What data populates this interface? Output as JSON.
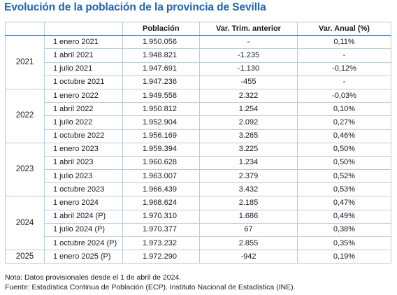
{
  "title": "Evolución de la población de la provincia de Sevilla",
  "headers": {
    "poblacion": "Población",
    "var_trim": "Var. Trim. anterior",
    "var_anual": "Var. Anual (%)"
  },
  "rows": [
    {
      "year": "2021",
      "date": "1 enero 2021",
      "pop": "1.950.056",
      "tri": "-",
      "anu": "0,11%"
    },
    {
      "year": "2021",
      "date": "1 abril 2021",
      "pop": "1.948.821",
      "tri": "-1.235",
      "anu": "-"
    },
    {
      "year": "2021",
      "date": "1 julio 2021",
      "pop": "1.947.691",
      "tri": "-1.130",
      "anu": "-0,12%"
    },
    {
      "year": "2021",
      "date": "1 octubre 2021",
      "pop": "1.947.236",
      "tri": "-455",
      "anu": "-"
    },
    {
      "year": "2022",
      "date": "1 enero 2022",
      "pop": "1.949.558",
      "tri": "2.322",
      "anu": "-0,03%"
    },
    {
      "year": "2022",
      "date": "1 abril 2022",
      "pop": "1.950.812",
      "tri": "1.254",
      "anu": "0,10%"
    },
    {
      "year": "2022",
      "date": "1 julio 2022",
      "pop": "1.952.904",
      "tri": "2.092",
      "anu": "0,27%"
    },
    {
      "year": "2022",
      "date": "1 octubre 2022",
      "pop": "1.956.169",
      "tri": "3.265",
      "anu": "0,46%"
    },
    {
      "year": "2023",
      "date": "1 enero 2023",
      "pop": "1.959.394",
      "tri": "3.225",
      "anu": "0,50%"
    },
    {
      "year": "2023",
      "date": "1 abril 2023",
      "pop": "1.960.628",
      "tri": "1.234",
      "anu": "0,50%"
    },
    {
      "year": "2023",
      "date": "1 julio 2023",
      "pop": "1.963.007",
      "tri": "2.379",
      "anu": "0,52%"
    },
    {
      "year": "2023",
      "date": "1 octubre 2023",
      "pop": "1.966.439",
      "tri": "3.432",
      "anu": "0,53%"
    },
    {
      "year": "2024",
      "date": "1 enero 2024",
      "pop": "1.968.624",
      "tri": "2.185",
      "anu": "0,47%"
    },
    {
      "year": "2024",
      "date": "1 abril 2024 (P)",
      "pop": "1.970.310",
      "tri": "1.686",
      "anu": "0,49%"
    },
    {
      "year": "2024",
      "date": "1 julio 2024 (P)",
      "pop": "1.970.377",
      "tri": "67",
      "anu": "0,38%"
    },
    {
      "year": "2024",
      "date": "1 octubre 2024 (P)",
      "pop": "1.973.232",
      "tri": "2.855",
      "anu": "0,35%"
    },
    {
      "year": "2025",
      "date": "1 enero 2025 (P)",
      "pop": "1.972.290",
      "tri": "-942",
      "anu": "0,19%"
    }
  ],
  "notes": [
    "Nota: Datos provisionales desde el 1 de abril de 2024.",
    "Fuente: Estadística Continua de Población (ECP). Instituto Nacional de Estadística (INE)."
  ]
}
